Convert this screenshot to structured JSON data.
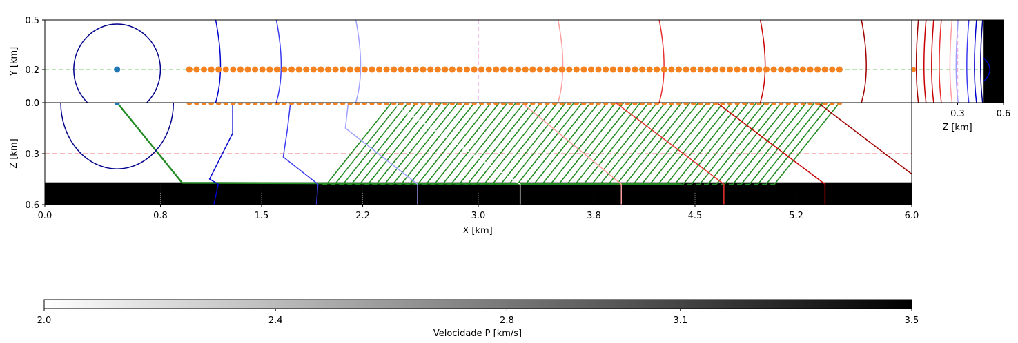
{
  "chart_data": [
    {
      "name": "map-view",
      "type": "scatter",
      "xlabel": "",
      "ylabel": "Y [km]",
      "xlim": [
        0,
        6.0
      ],
      "ylim": [
        0.0,
        0.5
      ],
      "yticks": [
        0.0,
        0.2,
        0.5
      ],
      "ytick_labels": [
        "0.0",
        "0.2",
        "0.5"
      ],
      "reference_lines": {
        "horizontal_y": 0.2,
        "vertical_x": 3.0
      },
      "source": {
        "x": 0.5,
        "y": 0.2
      },
      "receivers": {
        "x_start": 1.0,
        "x_end": 5.5,
        "count": 90,
        "y": 0.2
      },
      "wavefront_x_positions": [
        0.3,
        1.23,
        1.65,
        2.2,
        3.6,
        4.3,
        5.0,
        5.7
      ],
      "wavefront_colors": [
        "#00008b",
        "#0000cd",
        "#3c3cf0",
        "#a0a0ff",
        "#ff9f9f",
        "#e83030",
        "#c80000",
        "#a00000"
      ]
    },
    {
      "name": "depth-section",
      "type": "line",
      "xlabel": "X [km]",
      "ylabel": "Z [km]",
      "xlim": [
        0,
        6.0
      ],
      "ylim": [
        0.6,
        0.0
      ],
      "xticks": [
        0.0,
        0.8,
        1.5,
        2.2,
        3.0,
        3.8,
        4.5,
        5.2,
        6.0
      ],
      "xtick_labels": [
        "0.0",
        "0.8",
        "1.5",
        "2.2",
        "3.0",
        "3.8",
        "4.5",
        "5.2",
        "6.0"
      ],
      "yticks": [
        0.0,
        0.3,
        0.6
      ],
      "ytick_labels": [
        "0.0",
        "0.3",
        "0.6"
      ],
      "reference_line_z": 0.3,
      "high_velocity_layer": {
        "z_top": 0.47,
        "z_bottom": 0.6,
        "velocity": 3.5
      },
      "source": {
        "x": 0.5,
        "z": 0.0
      },
      "receivers": {
        "x_start": 1.0,
        "x_end": 5.5,
        "count": 90,
        "z": 0.0
      },
      "refracted_rays": {
        "count": 55,
        "receiver_x_start": 2.4,
        "receiver_x_end": 5.5,
        "reflector_z": 0.48,
        "critical_offset_x": 0.95,
        "color": "#228b22"
      },
      "wavefronts": [
        {
          "color": "#00008b",
          "kind": "circle",
          "cx": 0.5,
          "cz": 0.0,
          "r": 0.39
        },
        {
          "color": "#0000cd",
          "points": [
            [
              1.3,
              0.0
            ],
            [
              1.3,
              0.18
            ],
            [
              1.14,
              0.45
            ],
            [
              1.2,
              0.48
            ],
            [
              1.17,
              0.6
            ]
          ]
        },
        {
          "color": "#3c3cf0",
          "points": [
            [
              1.7,
              0.0
            ],
            [
              1.68,
              0.15
            ],
            [
              1.65,
              0.32
            ],
            [
              1.89,
              0.48
            ],
            [
              1.88,
              0.6
            ]
          ]
        },
        {
          "color": "#a0a0ff",
          "points": [
            [
              2.1,
              0.0
            ],
            [
              2.08,
              0.15
            ],
            [
              2.58,
              0.48
            ],
            [
              2.58,
              0.6
            ]
          ]
        },
        {
          "color": "#ffffff",
          "points": [
            [
              2.4,
              0.0
            ],
            [
              3.29,
              0.48
            ],
            [
              3.29,
              0.6
            ]
          ]
        },
        {
          "color": "#ff9f9f",
          "points": [
            [
              3.3,
              0.0
            ],
            [
              3.99,
              0.48
            ],
            [
              3.99,
              0.6
            ]
          ]
        },
        {
          "color": "#e83030",
          "points": [
            [
              3.95,
              0.0
            ],
            [
              4.7,
              0.48
            ],
            [
              4.7,
              0.6
            ]
          ]
        },
        {
          "color": "#c80000",
          "points": [
            [
              4.65,
              0.0
            ],
            [
              5.4,
              0.48
            ],
            [
              5.4,
              0.6
            ]
          ]
        },
        {
          "color": "#a00000",
          "points": [
            [
              5.35,
              0.0
            ],
            [
              6.0,
              0.42
            ]
          ]
        }
      ]
    },
    {
      "name": "side-view",
      "type": "line",
      "xlabel": "Z [km]",
      "xlim": [
        0.0,
        0.6
      ],
      "xticks": [
        0.3,
        0.6
      ],
      "xtick_labels": [
        "0.3",
        "0.6"
      ],
      "ylim": [
        0.0,
        0.5
      ],
      "reference_line_y": 0.2,
      "reference_line_z": 0.3,
      "layer_z_top": 0.47,
      "wavefront_z_positions": [
        0.03,
        0.08,
        0.13,
        0.18,
        0.25,
        0.29,
        0.36,
        0.41,
        0.45
      ],
      "wavefront_colors": [
        "#a00000",
        "#c80000",
        "#c80000",
        "#e83030",
        "#ff9f9f",
        "#a0a0ff",
        "#3c3cf0",
        "#0000cd",
        "#00008b"
      ]
    },
    {
      "name": "colorbar",
      "type": "heatmap",
      "label": "Velocidade P [km/s]",
      "range": [
        2.0,
        3.5
      ],
      "ticks": [
        2.0,
        2.4,
        2.8,
        3.1,
        3.5
      ],
      "tick_labels": [
        "2.0",
        "2.4",
        "2.8",
        "3.1",
        "3.5"
      ],
      "colormap": [
        "#ffffff",
        "#000000"
      ]
    }
  ]
}
